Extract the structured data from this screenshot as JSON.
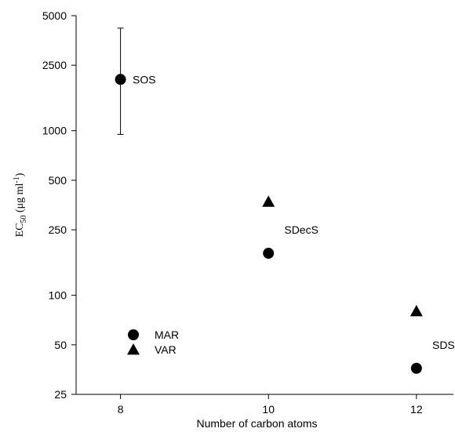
{
  "chart_data": {
    "type": "scatter",
    "title": "",
    "xlabel": "Number of carbon atoms",
    "ylabel": {
      "prefix": "EC",
      "subscript": "50",
      "unit_open": " (μg ml",
      "unit_sup": "-1",
      "unit_close": ")"
    },
    "x_ticks": [
      8,
      10,
      12
    ],
    "xlim": [
      7.4,
      12.5
    ],
    "y_scale": "log",
    "ylim": [
      25,
      5000
    ],
    "y_ticks": [
      25,
      50,
      100,
      250,
      500,
      1000,
      2500,
      5000
    ],
    "grid": false,
    "legend": {
      "placement": "bottom-left",
      "entries": [
        {
          "name": "MAR",
          "marker": "circle"
        },
        {
          "name": "VAR",
          "marker": "triangle"
        }
      ]
    },
    "series": [
      {
        "name": "MAR",
        "marker": "circle",
        "points": [
          {
            "x": 8,
            "y": 2050,
            "err_low": 950,
            "err_high": 4200
          },
          {
            "x": 10,
            "y": 180
          },
          {
            "x": 12,
            "y": 36
          }
        ]
      },
      {
        "name": "VAR",
        "marker": "triangle",
        "points": [
          {
            "x": 10,
            "y": 370
          },
          {
            "x": 12,
            "y": 80
          }
        ]
      }
    ],
    "annotations": [
      {
        "text": "SOS",
        "x": 8.1,
        "y": 2050
      },
      {
        "text": "SDecS",
        "x": 10.15,
        "y": 250
      },
      {
        "text": "SDS",
        "x": 12.15,
        "y": 50
      }
    ]
  }
}
